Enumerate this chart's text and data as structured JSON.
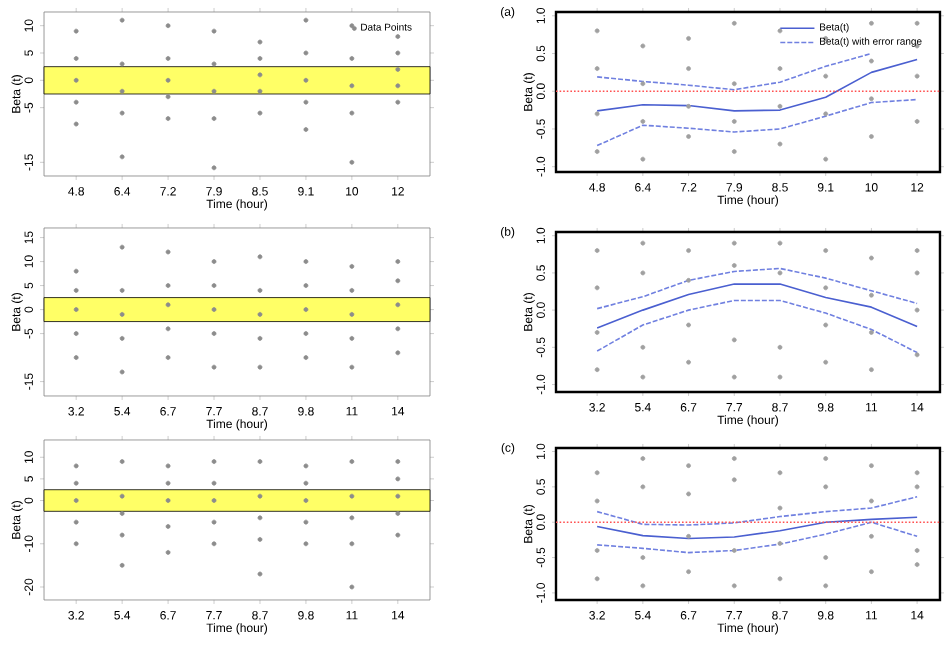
{
  "chart_data": [
    {
      "type": "scatter",
      "xlabel": "Time (hour)",
      "ylabel": "Beta (t)",
      "ylim": [
        -17.5,
        12.5
      ],
      "legend": "top right",
      "categories": [
        "4.8",
        "6.4",
        "7.2",
        "7.9",
        "8.5",
        "9.1",
        "10",
        "12"
      ],
      "yticks": [
        -15,
        -5,
        0,
        5,
        10
      ],
      "bands": [
        {
          "axis": "y",
          "from": -2.5,
          "to": 2.5,
          "color": "#ffff66"
        }
      ],
      "series": [
        {
          "name": "Data Points",
          "type": "scatter",
          "color": "#8c8c8c",
          "x": [
            "4.8",
            "4.8",
            "4.8",
            "4.8",
            "4.8",
            "6.4",
            "6.4",
            "6.4",
            "6.4",
            "6.4",
            "7.2",
            "7.2",
            "7.2",
            "7.2",
            "7.2",
            "7.9",
            "7.9",
            "7.9",
            "7.9",
            "7.9",
            "8.5",
            "8.5",
            "8.5",
            "8.5",
            "8.5",
            "9.1",
            "9.1",
            "9.1",
            "9.1",
            "9.1",
            "10",
            "10",
            "10",
            "10",
            "10",
            "12",
            "12",
            "12",
            "12",
            "12"
          ],
          "values": [
            -8,
            -4,
            0,
            4,
            9,
            -14,
            -6,
            -2,
            3,
            11,
            -7,
            -3,
            0,
            4,
            10,
            -16,
            -7,
            -2,
            3,
            9,
            -6,
            -2,
            1,
            4,
            7,
            -9,
            -4,
            0,
            5,
            11,
            -15,
            -6,
            -1,
            4,
            10,
            -4,
            -1,
            2,
            5,
            8
          ]
        }
      ]
    },
    {
      "type": "line",
      "title": "(a)",
      "xlabel": "Time (hour)",
      "ylabel": "Beta (t)",
      "ylim": [
        -1.07,
        1.05
      ],
      "legend": "top right",
      "categories": [
        "4.8",
        "6.4",
        "7.2",
        "7.9",
        "8.5",
        "9.1",
        "10",
        "12"
      ],
      "yticks": [
        {
          "value": -1,
          "label": "-1.0"
        },
        {
          "value": -0.5,
          "label": "-0.5"
        },
        {
          "value": 0,
          "label": "0.0"
        },
        {
          "value": 0.5,
          "label": "0.5"
        },
        {
          "value": 1,
          "label": "1.0"
        }
      ],
      "ref_lines": [
        {
          "axis": "y",
          "value": 0,
          "color": "#ff5050",
          "line_style": "dotted"
        }
      ],
      "series": [
        {
          "type": "scatter",
          "color": "#a0a0a0",
          "x": [
            "4.8",
            "4.8",
            "4.8",
            "4.8",
            "6.4",
            "6.4",
            "6.4",
            "6.4",
            "7.2",
            "7.2",
            "7.2",
            "7.2",
            "7.9",
            "7.9",
            "7.9",
            "7.9",
            "8.5",
            "8.5",
            "8.5",
            "8.5",
            "9.1",
            "9.1",
            "9.1",
            "9.1",
            "10",
            "10",
            "10",
            "10",
            "12",
            "12",
            "12",
            "12"
          ],
          "values": [
            -0.8,
            -0.3,
            0.3,
            0.8,
            -0.9,
            -0.4,
            0.1,
            0.6,
            -0.6,
            -0.2,
            0.3,
            0.7,
            -0.8,
            -0.4,
            0.1,
            0.9,
            -0.7,
            -0.2,
            0.3,
            0.8,
            -0.9,
            -0.3,
            0.2,
            0.7,
            -0.6,
            -0.1,
            0.4,
            0.9,
            -0.4,
            0.2,
            0.6,
            0.9
          ]
        },
        {
          "name": "Beta(t)",
          "type": "line",
          "line_style": "solid",
          "color": "#4a5fd0",
          "values": [
            -0.26,
            -0.18,
            -0.19,
            -0.26,
            -0.25,
            -0.08,
            0.25,
            0.42
          ]
        },
        {
          "name": "Beta(t) with error range",
          "type": "line",
          "line_style": "dashed",
          "color": "#7080e0",
          "values": [
            0.19,
            0.13,
            0.08,
            0.02,
            0.12,
            0.33,
            0.5,
            null
          ]
        },
        {
          "type": "line",
          "line_style": "dashed",
          "color": "#7080e0",
          "values": [
            -0.72,
            -0.45,
            -0.49,
            -0.54,
            -0.5,
            -0.33,
            -0.15,
            -0.11
          ]
        }
      ]
    },
    {
      "type": "scatter",
      "xlabel": "Time (hour)",
      "ylabel": "Beta (t)",
      "ylim": [
        -18,
        17
      ],
      "categories": [
        "3.2",
        "5.4",
        "6.7",
        "7.7",
        "8.7",
        "9.8",
        "11",
        "14"
      ],
      "yticks": [
        -15,
        -5,
        0,
        5,
        10,
        15
      ],
      "bands": [
        {
          "axis": "y",
          "from": -2.5,
          "to": 2.5,
          "color": "#ffff66"
        }
      ],
      "series": [
        {
          "type": "scatter",
          "color": "#8c8c8c",
          "x": [
            "3.2",
            "3.2",
            "3.2",
            "3.2",
            "3.2",
            "5.4",
            "5.4",
            "5.4",
            "5.4",
            "5.4",
            "6.7",
            "6.7",
            "6.7",
            "6.7",
            "6.7",
            "7.7",
            "7.7",
            "7.7",
            "7.7",
            "7.7",
            "8.7",
            "8.7",
            "8.7",
            "8.7",
            "8.7",
            "9.8",
            "9.8",
            "9.8",
            "9.8",
            "9.8",
            "11",
            "11",
            "11",
            "11",
            "11",
            "14",
            "14",
            "14",
            "14",
            "14"
          ],
          "values": [
            -10,
            -5,
            0,
            4,
            8,
            -13,
            -6,
            -1,
            4,
            13,
            -10,
            -4,
            1,
            5,
            12,
            -12,
            -5,
            0,
            5,
            10,
            -12,
            -6,
            -1,
            4,
            11,
            -10,
            -5,
            0,
            5,
            10,
            -12,
            -6,
            -1,
            4,
            9,
            -9,
            -4,
            1,
            6,
            10
          ]
        }
      ]
    },
    {
      "type": "line",
      "title": "(b)",
      "xlabel": "Time (hour)",
      "ylabel": "Beta (t)",
      "ylim": [
        -1.1,
        1.05
      ],
      "categories": [
        "3.2",
        "5.4",
        "6.7",
        "7.7",
        "8.7",
        "9.8",
        "11",
        "14"
      ],
      "yticks": [
        {
          "value": -1,
          "label": "-1.0"
        },
        {
          "value": -0.5,
          "label": "-0.5"
        },
        {
          "value": 0,
          "label": "0.0"
        },
        {
          "value": 0.5,
          "label": "0.5"
        },
        {
          "value": 1,
          "label": "1.0"
        }
      ],
      "series": [
        {
          "type": "scatter",
          "color": "#a0a0a0",
          "x": [
            "3.2",
            "3.2",
            "3.2",
            "3.2",
            "5.4",
            "5.4",
            "5.4",
            "5.4",
            "6.7",
            "6.7",
            "6.7",
            "6.7",
            "7.7",
            "7.7",
            "7.7",
            "7.7",
            "8.7",
            "8.7",
            "8.7",
            "8.7",
            "9.8",
            "9.8",
            "9.8",
            "9.8",
            "11",
            "11",
            "11",
            "11",
            "14",
            "14",
            "14",
            "14"
          ],
          "values": [
            -0.8,
            -0.3,
            0.3,
            0.8,
            -0.9,
            -0.5,
            0.5,
            0.9,
            -0.7,
            -0.2,
            0.4,
            0.8,
            -0.9,
            -0.4,
            0.6,
            0.9,
            -0.9,
            -0.5,
            0.5,
            0.9,
            -0.7,
            -0.2,
            0.3,
            0.8,
            -0.8,
            -0.3,
            0.2,
            0.7,
            -0.6,
            0,
            0.5,
            0.8
          ]
        },
        {
          "type": "line",
          "line_style": "solid",
          "color": "#4a5fd0",
          "values": [
            -0.24,
            0.0,
            0.21,
            0.35,
            0.35,
            0.17,
            0.04,
            -0.22
          ]
        },
        {
          "type": "line",
          "line_style": "dashed",
          "color": "#7080e0",
          "values": [
            0.02,
            0.18,
            0.4,
            0.52,
            0.56,
            0.43,
            0.26,
            0.09
          ]
        },
        {
          "type": "line",
          "line_style": "dashed",
          "color": "#7080e0",
          "values": [
            -0.55,
            -0.2,
            0.0,
            0.13,
            0.13,
            -0.04,
            -0.26,
            -0.57
          ]
        }
      ]
    },
    {
      "type": "scatter",
      "xlabel": "Time (hour)",
      "ylabel": "Beta (t)",
      "ylim": [
        -23,
        14
      ],
      "categories": [
        "3.2",
        "5.4",
        "6.7",
        "7.7",
        "8.7",
        "9.8",
        "11",
        "14"
      ],
      "yticks": [
        -20,
        -10,
        0,
        5,
        10
      ],
      "bands": [
        {
          "axis": "y",
          "from": -2.5,
          "to": 2.5,
          "color": "#ffff66"
        }
      ],
      "series": [
        {
          "type": "scatter",
          "color": "#8c8c8c",
          "x": [
            "3.2",
            "3.2",
            "3.2",
            "3.2",
            "3.2",
            "5.4",
            "5.4",
            "5.4",
            "5.4",
            "5.4",
            "6.7",
            "6.7",
            "6.7",
            "6.7",
            "6.7",
            "7.7",
            "7.7",
            "7.7",
            "7.7",
            "7.7",
            "8.7",
            "8.7",
            "8.7",
            "8.7",
            "8.7",
            "9.8",
            "9.8",
            "9.8",
            "9.8",
            "9.8",
            "11",
            "11",
            "11",
            "11",
            "11",
            "14",
            "14",
            "14",
            "14",
            "14"
          ],
          "values": [
            -10,
            -5,
            0,
            4,
            8,
            -15,
            -8,
            -3,
            1,
            9,
            -12,
            -6,
            0,
            4,
            8,
            -10,
            -5,
            0,
            4,
            9,
            -17,
            -9,
            -4,
            1,
            9,
            -10,
            -5,
            0,
            4,
            8,
            -20,
            -10,
            -4,
            1,
            9,
            -8,
            -3,
            1,
            5,
            9
          ]
        }
      ]
    },
    {
      "type": "line",
      "title": "(c)",
      "xlabel": "Time (hour)",
      "ylabel": "Beta (t)",
      "ylim": [
        -1.1,
        1.05
      ],
      "categories": [
        "3.2",
        "5.4",
        "6.7",
        "7.7",
        "8.7",
        "9.8",
        "11",
        "14"
      ],
      "yticks": [
        {
          "value": -1,
          "label": "-1.0"
        },
        {
          "value": -0.5,
          "label": "-0.5"
        },
        {
          "value": 0,
          "label": "0.0"
        },
        {
          "value": 0.5,
          "label": "0.5"
        },
        {
          "value": 1,
          "label": "1.0"
        }
      ],
      "ref_lines": [
        {
          "axis": "y",
          "value": 0,
          "color": "#ff5050",
          "line_style": "dotted"
        }
      ],
      "series": [
        {
          "type": "scatter",
          "color": "#a0a0a0",
          "x": [
            "3.2",
            "3.2",
            "3.2",
            "3.2",
            "5.4",
            "5.4",
            "5.4",
            "5.4",
            "6.7",
            "6.7",
            "6.7",
            "6.7",
            "7.7",
            "7.7",
            "7.7",
            "7.7",
            "8.7",
            "8.7",
            "8.7",
            "8.7",
            "9.8",
            "9.8",
            "9.8",
            "9.8",
            "11",
            "11",
            "11",
            "11",
            "14",
            "14",
            "14",
            "14"
          ],
          "values": [
            -0.8,
            -0.4,
            0.3,
            0.7,
            -0.9,
            -0.5,
            0.5,
            0.9,
            -0.7,
            -0.2,
            0.4,
            0.8,
            -0.9,
            -0.4,
            0.6,
            0.9,
            -0.8,
            -0.3,
            0.2,
            0.7,
            -0.9,
            -0.5,
            0.5,
            0.9,
            -0.7,
            -0.2,
            0.3,
            0.8,
            -0.6,
            -0.4,
            0.5,
            0.7
          ]
        },
        {
          "type": "line",
          "line_style": "solid",
          "color": "#4a5fd0",
          "values": [
            -0.06,
            -0.19,
            -0.23,
            -0.21,
            -0.12,
            0,
            0.04,
            0.07
          ]
        },
        {
          "type": "line",
          "line_style": "dashed",
          "color": "#7080e0",
          "values": [
            0.15,
            -0.03,
            -0.04,
            -0.01,
            0.08,
            0.15,
            0.2,
            0.36
          ]
        },
        {
          "type": "line",
          "line_style": "dashed",
          "color": "#7080e0",
          "values": [
            -0.32,
            -0.37,
            -0.43,
            -0.4,
            -0.31,
            -0.17,
            0,
            -0.2
          ]
        }
      ]
    }
  ]
}
